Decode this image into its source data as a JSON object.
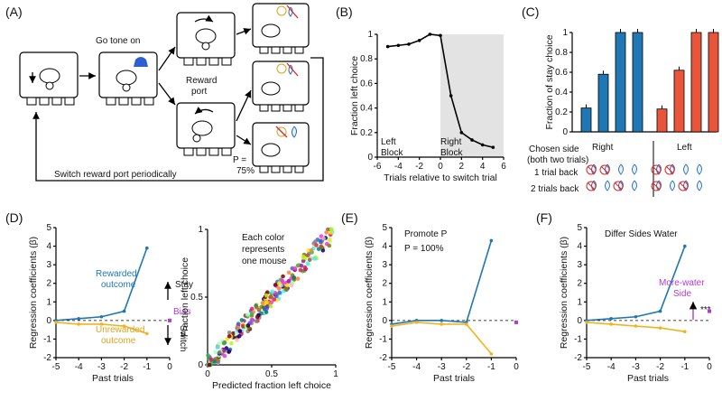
{
  "panels": {
    "A": {
      "label": "(A)",
      "go_tone": "Go tone on",
      "reward_port": [
        "Reward",
        "port"
      ],
      "p_label": "P =",
      "p_value": "75%",
      "switch_text": "Switch reward  port periodically"
    },
    "B": {
      "label": "(B)",
      "left_block": [
        "Left",
        "Block"
      ],
      "right_block": [
        "Right",
        "Block"
      ]
    },
    "C": {
      "label": "(C)",
      "chosen_side": [
        "Chosen side",
        "(both two trials)"
      ],
      "one_back": "1 trial back",
      "two_back": "2 trials back",
      "right": "Right",
      "left": "Left"
    },
    "D": {
      "label": "(D)",
      "rewarded": [
        "Rewarded",
        "outcome"
      ],
      "unrewarded": [
        "Unrewarded",
        "outcome"
      ],
      "stay": "Stay",
      "switch": "Switch",
      "bias": "Bias",
      "scatter_note": [
        "Each color",
        "represents",
        "one mouse"
      ]
    },
    "E": {
      "label": "(E)",
      "title": "Promote P",
      "subtitle": "P = 100%"
    },
    "F": {
      "label": "(F)",
      "title": "Differ Sides Water",
      "more_water": [
        "More-water",
        "Side"
      ],
      "sig": "***"
    }
  },
  "colors": {
    "blue": "#1f77b4",
    "red": "#e8553a",
    "yellow": "#f0b41e",
    "purple": "#b23ad6",
    "shade": "#e3e3e3"
  },
  "chart_data": [
    {
      "id": "B",
      "type": "line",
      "xlabel": "Trials relative to switch trial",
      "ylabel": "Fraction left choice",
      "xlim": [
        -6,
        6
      ],
      "ylim": [
        0,
        1
      ],
      "xticks": [
        -6,
        -4,
        -2,
        0,
        2,
        4,
        6
      ],
      "yticks": [
        0,
        0.2,
        0.4,
        0.6,
        0.8,
        1
      ],
      "shaded_from": 0,
      "x": [
        -5,
        -4,
        -3,
        -2,
        -1,
        0,
        1,
        2,
        3,
        4,
        5
      ],
      "values": [
        0.9,
        0.91,
        0.92,
        0.95,
        1.0,
        0.99,
        0.5,
        0.2,
        0.14,
        0.1,
        0.08
      ]
    },
    {
      "id": "C",
      "type": "bar",
      "ylabel": "Fraction of stay choice",
      "ylim": [
        0,
        1
      ],
      "yticks": [
        0,
        0.2,
        0.4,
        0.6,
        0.8,
        1
      ],
      "groups": [
        {
          "name": "Right",
          "color": "blue",
          "values": [
            0.24,
            0.58,
            1.0,
            1.0
          ]
        },
        {
          "name": "Left",
          "color": "red",
          "values": [
            0.23,
            0.62,
            1.0,
            1.0
          ]
        }
      ]
    },
    {
      "id": "D",
      "type": "line",
      "xlabel": "Past trials",
      "ylabel": "Regression coefficients (β)",
      "xlim": [
        -5,
        0
      ],
      "ylim": [
        -2,
        5
      ],
      "xticks": [
        -5,
        -4,
        -3,
        -2,
        -1,
        0
      ],
      "yticks": [
        -2,
        -1,
        0,
        1,
        2,
        3,
        4,
        5
      ],
      "x": [
        -5,
        -4,
        -3,
        -2,
        -1
      ],
      "series": [
        {
          "name": "Rewarded outcome",
          "color": "blue",
          "values": [
            0.0,
            0.1,
            0.2,
            0.5,
            3.9
          ]
        },
        {
          "name": "Unrewarded outcome",
          "color": "yellow",
          "values": [
            -0.1,
            -0.2,
            -0.2,
            -0.3,
            -0.7
          ]
        }
      ],
      "bias": 0.0
    },
    {
      "id": "D2",
      "type": "scatter",
      "xlabel": "Predicted fraction left choice",
      "ylabel": "Fraction left choice",
      "xlim": [
        0,
        1
      ],
      "ylim": [
        0,
        1
      ],
      "xticks": [
        0,
        0.5,
        1
      ],
      "yticks": [
        0,
        0.5,
        1
      ]
    },
    {
      "id": "E",
      "type": "line",
      "xlabel": "Past trials",
      "ylabel": "Regression coefficients (β)",
      "xlim": [
        -5,
        0
      ],
      "ylim": [
        -2,
        5
      ],
      "xticks": [
        -5,
        -4,
        -3,
        -2,
        -1,
        0
      ],
      "yticks": [
        -2,
        -1,
        0,
        1,
        2,
        3,
        4,
        5
      ],
      "x": [
        -5,
        -4,
        -3,
        -2,
        -1
      ],
      "series": [
        {
          "color": "blue",
          "values": [
            -0.2,
            0.0,
            0.0,
            -0.1,
            4.3
          ]
        },
        {
          "color": "yellow",
          "values": [
            -0.3,
            -0.1,
            -0.2,
            -0.2,
            -1.8
          ]
        }
      ],
      "bias": -0.1
    },
    {
      "id": "F",
      "type": "line",
      "xlabel": "Past trials",
      "ylabel": "Regression coefficients (β)",
      "xlim": [
        -5,
        0
      ],
      "ylim": [
        -2,
        5
      ],
      "xticks": [
        -5,
        -4,
        -3,
        -2,
        -1,
        0
      ],
      "yticks": [
        -2,
        -1,
        0,
        1,
        2,
        3,
        4,
        5
      ],
      "x": [
        -5,
        -4,
        -3,
        -2,
        -1
      ],
      "series": [
        {
          "color": "blue",
          "values": [
            0.0,
            0.1,
            0.2,
            0.5,
            4.0
          ]
        },
        {
          "color": "yellow",
          "values": [
            -0.1,
            -0.2,
            -0.3,
            -0.4,
            -0.6
          ]
        }
      ],
      "bias": 0.5
    }
  ]
}
